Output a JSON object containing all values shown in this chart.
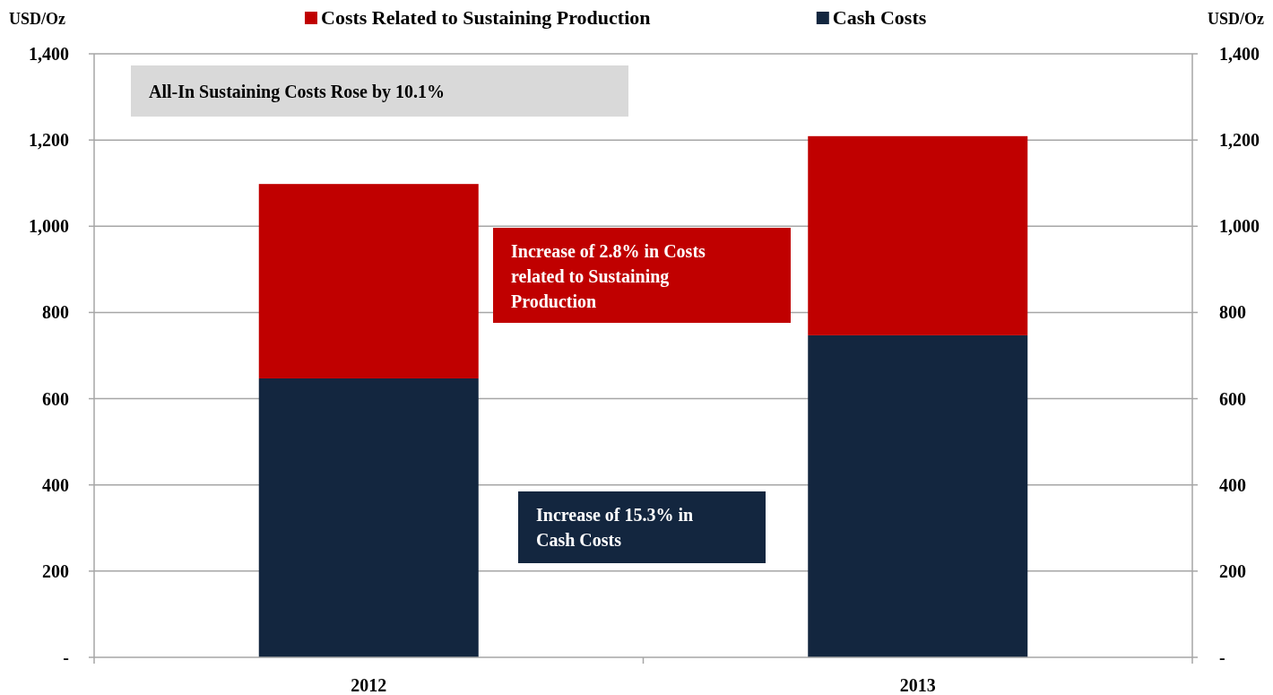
{
  "chart_data": {
    "type": "bar",
    "stacked": true,
    "categories": [
      "2012",
      "2013"
    ],
    "series": [
      {
        "name": "Cash Costs",
        "color": "#13263f",
        "values": [
          647,
          747
        ]
      },
      {
        "name": "Costs Related to Sustaining Production",
        "color": "#c00000",
        "values": [
          451,
          462
        ]
      }
    ],
    "ylabel": "USD/Oz",
    "y2label": "USD/Oz",
    "ylim": [
      0,
      1400
    ],
    "yticks": [
      {
        "value": 0,
        "label": "-"
      },
      200,
      400,
      600,
      800,
      {
        "value": 1000,
        "label": "1,000"
      },
      {
        "value": 1200,
        "label": "1,200"
      },
      {
        "value": 1400,
        "label": "1,400"
      }
    ],
    "y2lim": [
      0,
      1400
    ],
    "y2ticks": [
      {
        "value": 0,
        "label": "-"
      },
      200,
      400,
      600,
      800,
      {
        "value": 1000,
        "label": "1,000"
      },
      {
        "value": 1200,
        "label": "1,200"
      },
      {
        "value": 1400,
        "label": "1,400"
      }
    ],
    "grid": "y",
    "legend": "top",
    "annotations": [
      "All-In Sustaining Costs Rose by 10.1%",
      "Increase of 2.8% in Costs related to Sustaining Production",
      "Increase of 15.3% in Cash Costs"
    ]
  }
}
